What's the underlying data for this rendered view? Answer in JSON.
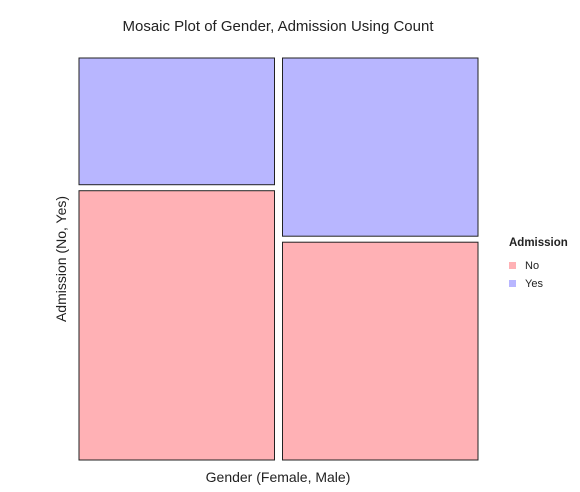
{
  "chart_data": {
    "type": "mosaic",
    "title": "Mosaic Plot of Gender, Admission Using Count",
    "xlabel": "Gender (Female, Male)",
    "ylabel": "Admission (No, Yes)",
    "categories": [
      "Female",
      "Male"
    ],
    "column_share": [
      0.5,
      0.5
    ],
    "series": [
      {
        "name": "No",
        "values": [
          0.68,
          0.55
        ]
      },
      {
        "name": "Yes",
        "values": [
          0.32,
          0.45
        ]
      }
    ],
    "legend": {
      "title": "Admission",
      "position": "right",
      "entries": [
        "No",
        "Yes"
      ]
    },
    "colors": {
      "No": "#FFB1B5",
      "Yes": "#B8B6FF",
      "border": "#222222"
    },
    "grid": false
  }
}
